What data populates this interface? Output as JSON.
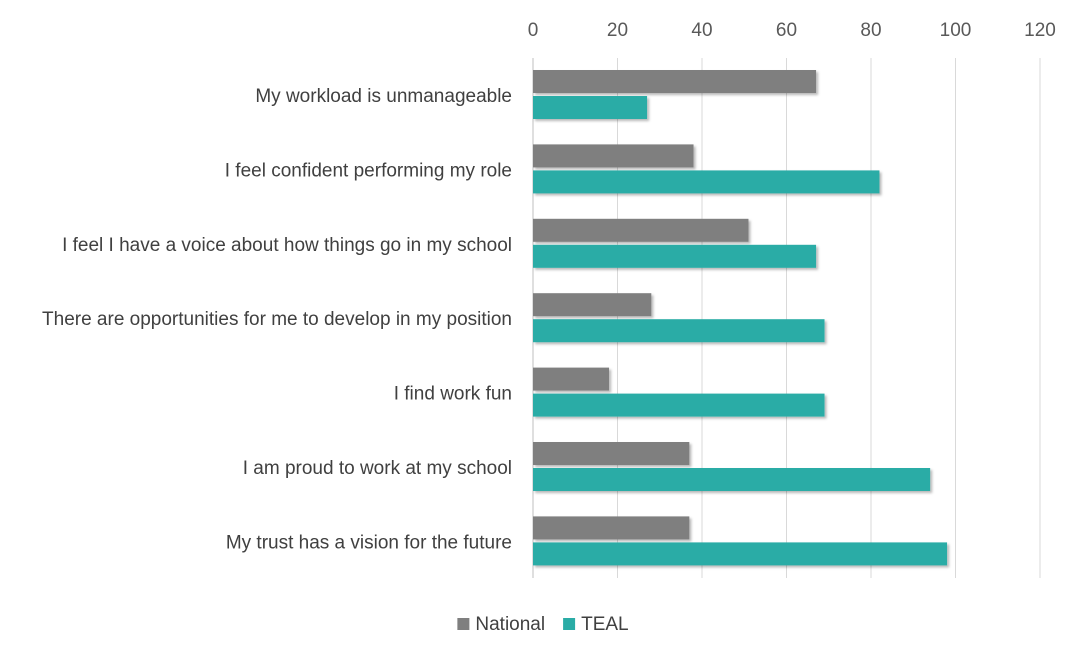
{
  "chart_data": {
    "type": "bar",
    "orientation": "horizontal",
    "categories": [
      "My workload is unmanageable",
      "I feel confident performing my role",
      "I feel I have a voice about how things go in my school",
      "There are opportunities for me to develop in my position",
      "I find work fun",
      "I am proud to work at my school",
      "My trust has a vision for the future"
    ],
    "series": [
      {
        "name": "National",
        "color": "#7f7f7f",
        "values": [
          67,
          38,
          51,
          28,
          18,
          37,
          37
        ]
      },
      {
        "name": "TEAL",
        "color": "#2aaca6",
        "values": [
          27,
          82,
          67,
          69,
          69,
          94,
          98
        ]
      }
    ],
    "xlim": [
      0,
      120
    ],
    "x_ticks": [
      "0",
      "20",
      "40",
      "60",
      "80",
      "100",
      "120"
    ],
    "x_axis_position": "top",
    "grid": true,
    "legend_position": "bottom",
    "title": "",
    "xlabel": "",
    "ylabel": ""
  }
}
